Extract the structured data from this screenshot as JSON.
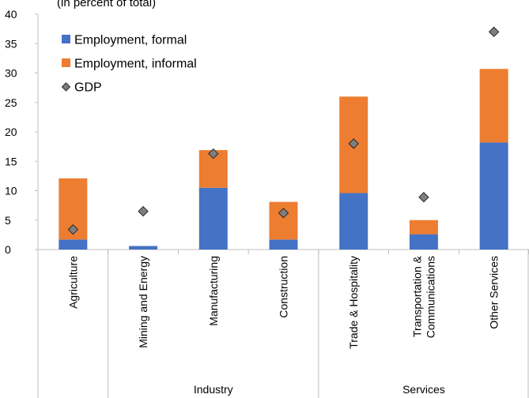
{
  "chart_data": {
    "type": "bar",
    "stacked": true,
    "title": "",
    "top_label": "(in percent of total)",
    "categories": [
      "Agriculture",
      "Mining and Energy",
      "Manufacturing",
      "Construction",
      "Trade & Hospitality",
      [
        "Transportation &",
        "Communications"
      ],
      "Other Services"
    ],
    "groups": [
      {
        "label": "",
        "from": 0,
        "to": 1
      },
      {
        "label": "Industry",
        "from": 1,
        "to": 4
      },
      {
        "label": "Services",
        "from": 4,
        "to": 7
      }
    ],
    "series": [
      {
        "name": "Employment, formal",
        "kind": "bar",
        "color": "#4472c4",
        "values": [
          1.7,
          0.6,
          10.5,
          1.7,
          9.6,
          2.6,
          18.2
        ]
      },
      {
        "name": "Employment, informal",
        "kind": "bar",
        "color": "#ed7d31",
        "values": [
          10.4,
          0.0,
          6.4,
          6.4,
          16.4,
          2.4,
          12.5
        ]
      },
      {
        "name": "GDP",
        "kind": "marker",
        "color": "#7f7f7f",
        "values": [
          3.4,
          6.5,
          16.3,
          6.2,
          18.0,
          8.9,
          37.0
        ]
      }
    ],
    "ylim": [
      0,
      40
    ],
    "yticks": [
      0,
      5,
      10,
      15,
      20,
      25,
      30,
      35,
      40
    ],
    "legend": "top-left",
    "grid": false
  }
}
